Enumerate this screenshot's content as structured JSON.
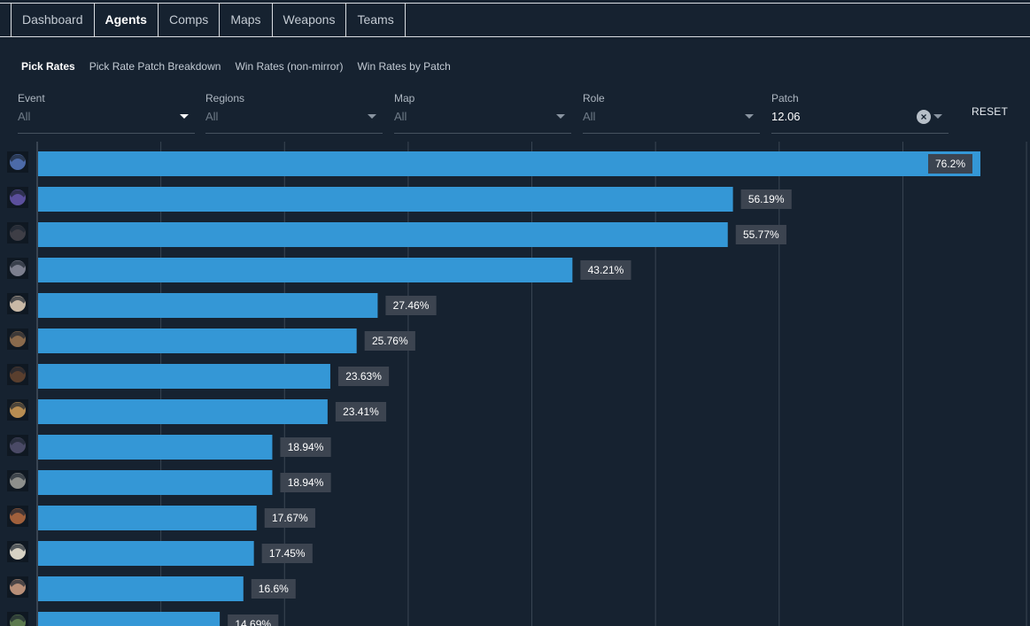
{
  "nav": {
    "tabs": [
      {
        "label": "Dashboard",
        "active": false
      },
      {
        "label": "Agents",
        "active": true
      },
      {
        "label": "Comps",
        "active": false
      },
      {
        "label": "Maps",
        "active": false
      },
      {
        "label": "Weapons",
        "active": false
      },
      {
        "label": "Teams",
        "active": false
      }
    ]
  },
  "subnav": {
    "tabs": [
      {
        "label": "Pick Rates",
        "active": true
      },
      {
        "label": "Pick Rate Patch Breakdown",
        "active": false
      },
      {
        "label": "Win Rates (non-mirror)",
        "active": false
      },
      {
        "label": "Win Rates by Patch",
        "active": false
      }
    ]
  },
  "filters": {
    "event": {
      "label": "Event",
      "value": "All"
    },
    "regions": {
      "label": "Regions",
      "value": "All"
    },
    "map": {
      "label": "Map",
      "value": "All"
    },
    "role": {
      "label": "Role",
      "value": "All"
    },
    "patch": {
      "label": "Patch",
      "value": "12.06"
    },
    "reset_label": "RESET"
  },
  "icons": {
    "clear": "clear-icon",
    "dropdown": "chevron-down-icon"
  },
  "colors": {
    "bar": "#3497d6",
    "background": "#162230",
    "label_bg": "#3c4450",
    "grid": "#3a4653"
  },
  "chart_data": {
    "type": "bar",
    "orientation": "horizontal",
    "values": [
      76.2,
      56.19,
      55.77,
      43.21,
      27.46,
      25.76,
      23.63,
      23.41,
      18.94,
      18.94,
      17.67,
      17.45,
      16.6,
      14.69
    ],
    "value_labels": [
      "76.2%",
      "56.19%",
      "55.77%",
      "43.21%",
      "27.46%",
      "25.76%",
      "23.63%",
      "23.41%",
      "18.94%",
      "18.94%",
      "17.67%",
      "17.45%",
      "16.6%",
      "14.69%"
    ],
    "avatar_colors": [
      "#4c6aa8",
      "#5b4f9c",
      "#3e3e46",
      "#7c7f8e",
      "#c9b9a6",
      "#8a6a4c",
      "#5a3f2e",
      "#b88d52",
      "#4a4a66",
      "#8d8f8c",
      "#a0603c",
      "#d7d2c4",
      "#b88f78",
      "#5c7a4e"
    ],
    "xlim": [
      0,
      80
    ],
    "grid": true
  }
}
